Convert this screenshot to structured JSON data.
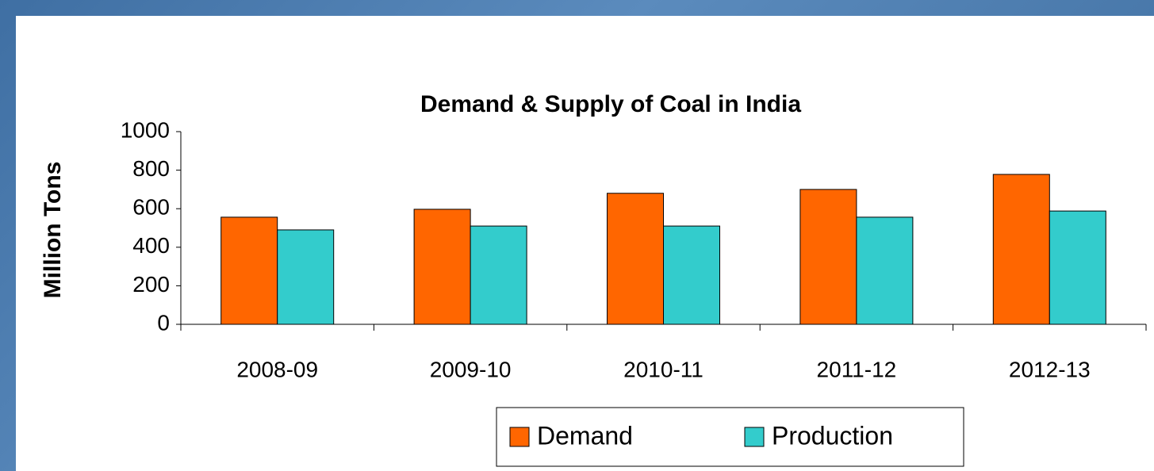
{
  "chart_data": {
    "type": "bar",
    "title": "Demand & Supply of Coal in India",
    "y_label": "Million Tons",
    "categories": [
      "2008-09",
      "2009-10",
      "2010-11",
      "2011-12",
      "2012-13"
    ],
    "series": [
      {
        "name": "Demand",
        "color": "#ff6600",
        "values": [
          556,
          597,
          680,
          700,
          778
        ]
      },
      {
        "name": "Production",
        "color": "#33cccc",
        "values": [
          490,
          510,
          510,
          556,
          588
        ]
      }
    ],
    "ylim": [
      0,
      1000
    ],
    "yticks": [
      0,
      200,
      400,
      600,
      800,
      1000
    ],
    "grid": false,
    "legend": "bottom"
  }
}
